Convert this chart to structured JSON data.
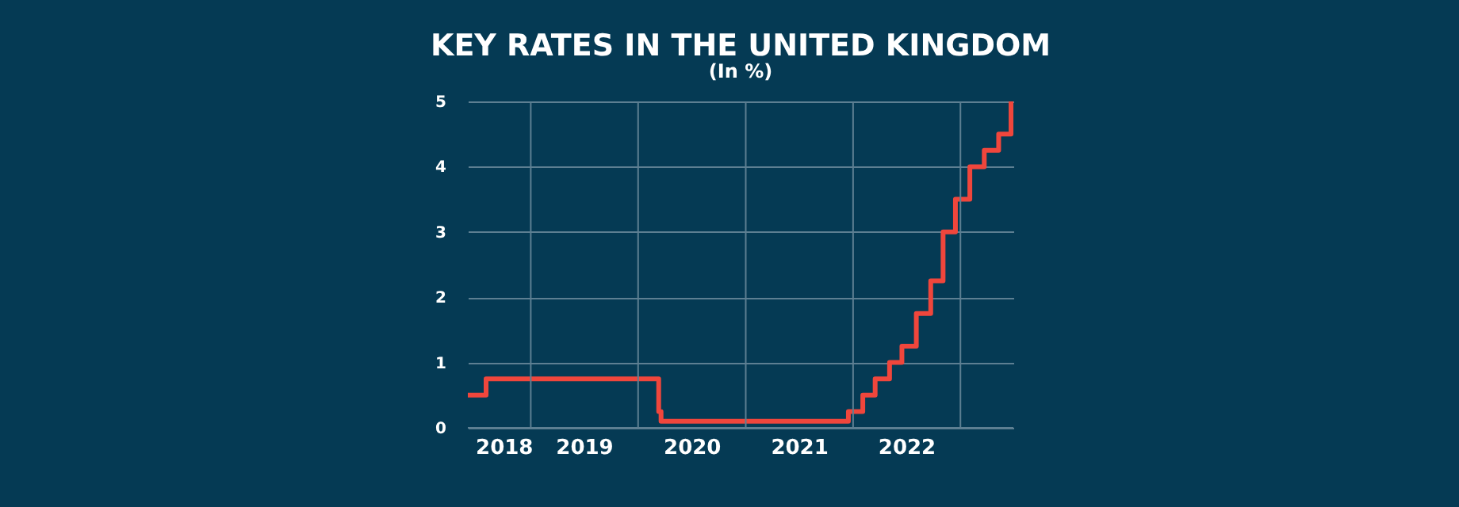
{
  "chart_data": {
    "type": "step",
    "title": "KEY RATES IN THE UNITED KINGDOM",
    "subtitle": "(In %)",
    "x": [
      "2018-06-01",
      "2018-08-02",
      "2020-03-11",
      "2020-03-19",
      "2021-12-16",
      "2022-02-03",
      "2022-03-17",
      "2022-05-05",
      "2022-06-16",
      "2022-08-04",
      "2022-09-22",
      "2022-11-03",
      "2022-12-15",
      "2023-02-02",
      "2023-03-23",
      "2023-05-11",
      "2023-06-22"
    ],
    "series": [
      {
        "color": "#f0463c",
        "values": [
          0.5,
          0.75,
          0.25,
          0.1,
          0.25,
          0.5,
          0.75,
          1.0,
          1.25,
          1.75,
          2.25,
          3.0,
          3.5,
          4.0,
          4.25,
          4.5,
          5.0
        ]
      }
    ],
    "xlim": [
      "2018-06-01",
      "2023-06-30"
    ],
    "xticks": [
      {
        "value": "2018-10-01",
        "label": "2018"
      },
      {
        "value": "2019-07-01",
        "label": "2019"
      },
      {
        "value": "2020-07-01",
        "label": "2020"
      },
      {
        "value": "2021-07-01",
        "label": "2021"
      },
      {
        "value": "2022-07-01",
        "label": "2022"
      },
      {
        "value": "2019-01-01",
        "label": null
      },
      {
        "value": "2020-01-01",
        "label": null
      },
      {
        "value": "2021-01-01",
        "label": null
      },
      {
        "value": "2022-01-01",
        "label": null
      },
      {
        "value": "2023-01-01",
        "label": null
      }
    ],
    "ylim": [
      0,
      5
    ],
    "yticks": [
      0,
      1,
      2,
      3,
      4,
      5
    ],
    "grid": true,
    "line_style": "solid",
    "marker": "none"
  }
}
